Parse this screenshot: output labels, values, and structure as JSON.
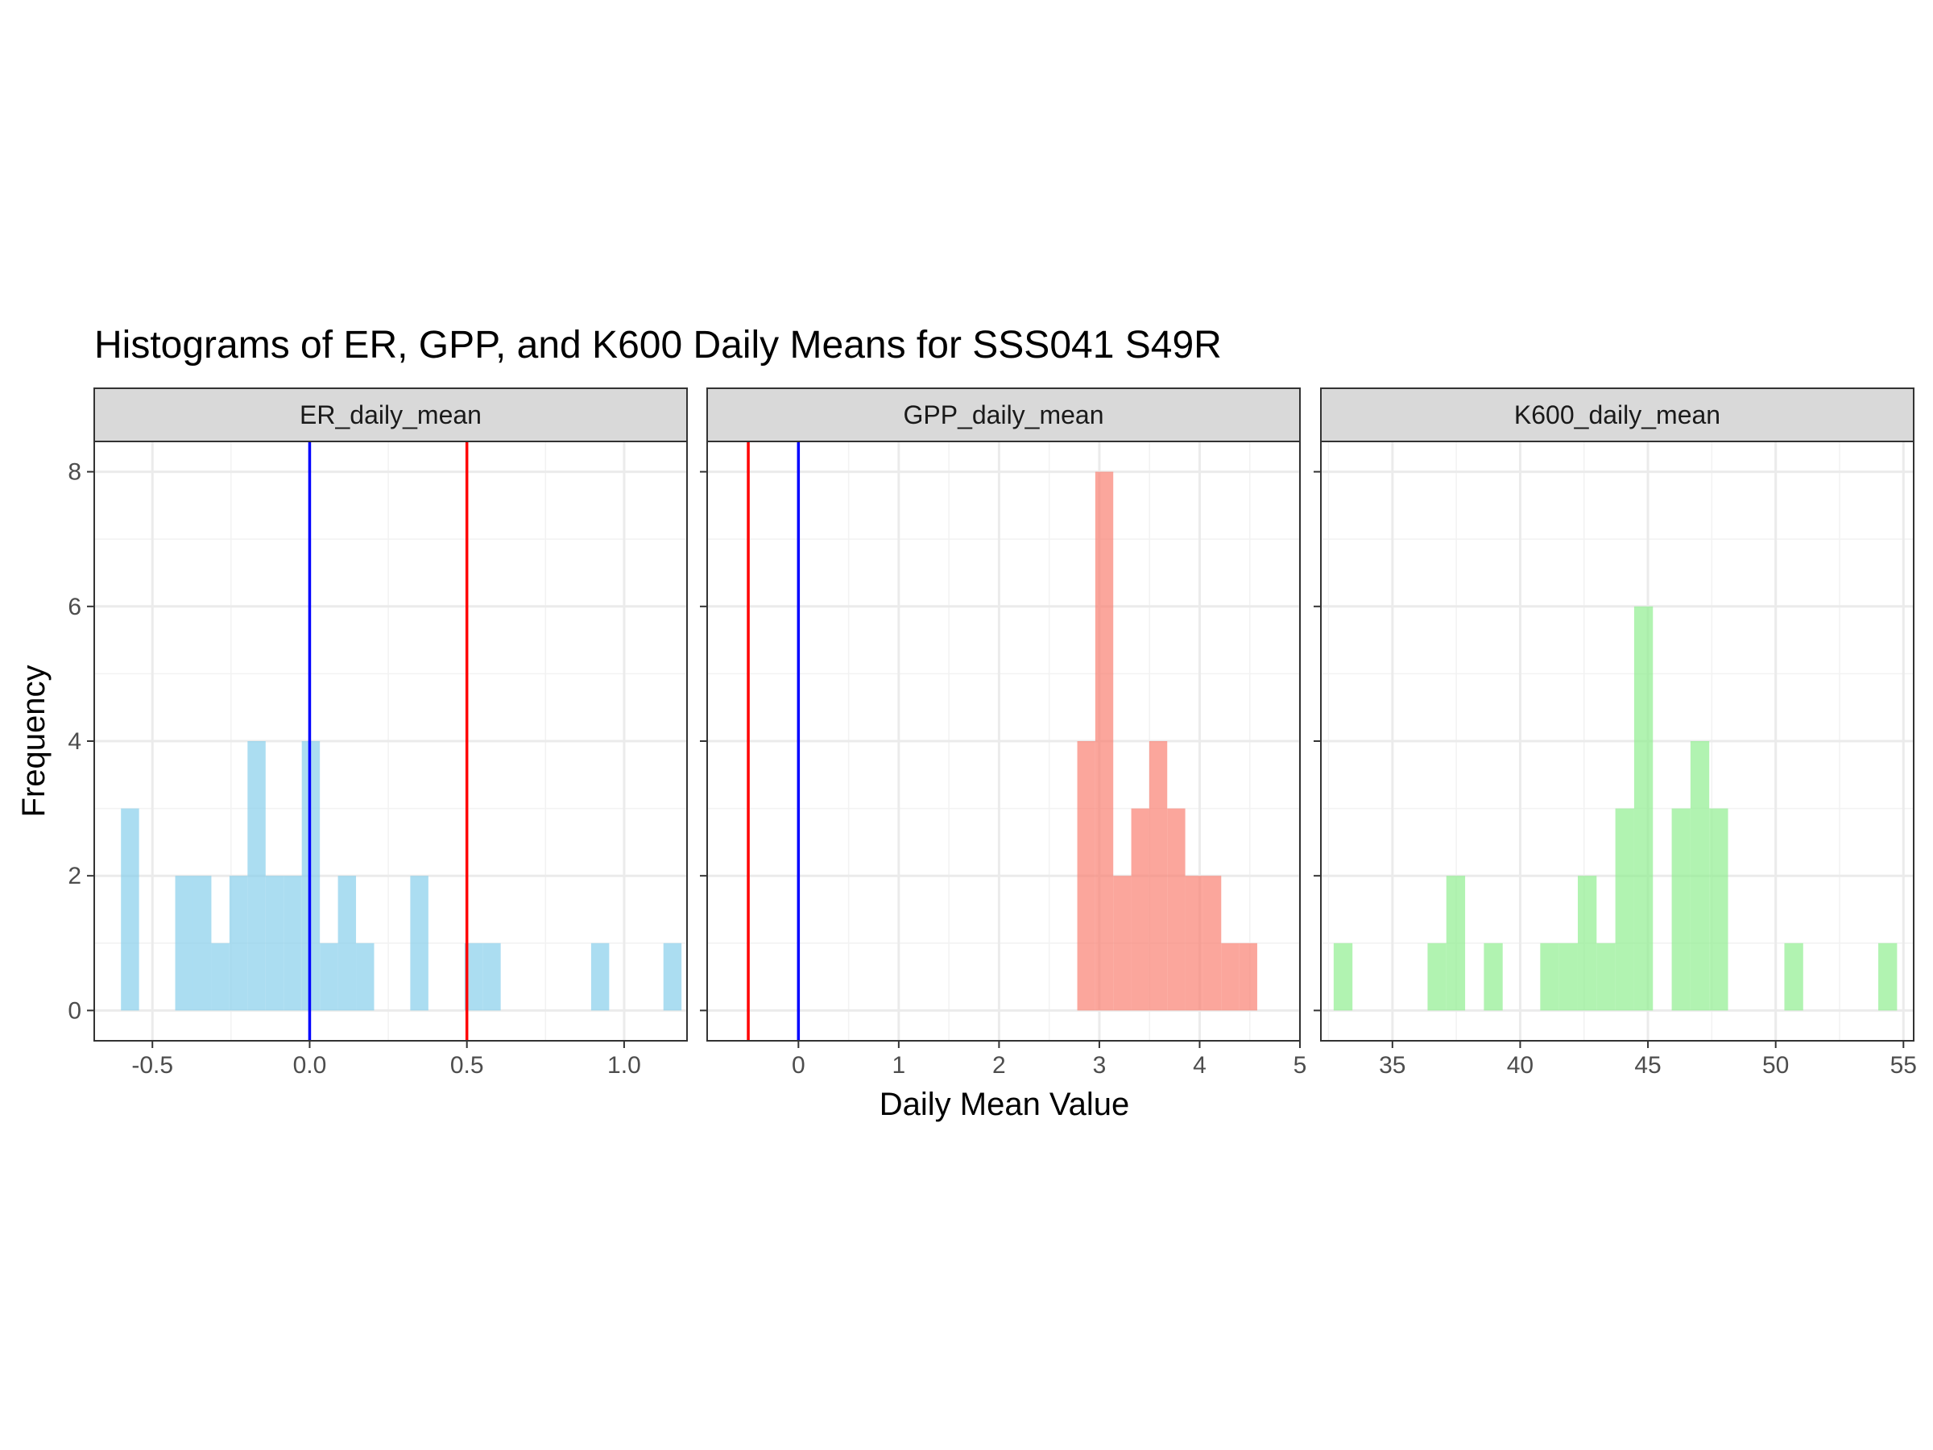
{
  "chart_data": {
    "type": "bar",
    "title": "Histograms of ER, GPP, and K600 Daily Means for SSS041 S49R",
    "xlabel": "Daily Mean Value",
    "ylabel": "Frequency",
    "ylim": [
      -0.45,
      8.45
    ],
    "y_ticks": [
      0,
      2,
      4,
      6,
      8
    ],
    "grid": true,
    "legend": "none",
    "panels": [
      {
        "name": "ER_daily_mean",
        "color": "#87CEEB",
        "xlim": [
          -0.685,
          1.2
        ],
        "x_ticks": [
          -0.5,
          0.0,
          0.5,
          1.0
        ],
        "x_tick_labels": [
          "-0.5",
          "0.0",
          "0.5",
          "1.0"
        ],
        "bin_start": -0.6,
        "bin_width": 0.0575,
        "counts": [
          3,
          0,
          0,
          2,
          2,
          1,
          2,
          4,
          2,
          2,
          4,
          1,
          2,
          1,
          0,
          0,
          2,
          0,
          0,
          1,
          1,
          0,
          0,
          0,
          0,
          0,
          1,
          0,
          0,
          0,
          1
        ],
        "vlines": [
          {
            "value": 0,
            "color": "#0000FF"
          },
          {
            "value": 0.5,
            "color": "#FF0000"
          }
        ]
      },
      {
        "name": "GPP_daily_mean",
        "color": "#FA8072",
        "xlim": [
          -0.91,
          5.0
        ],
        "x_ticks": [
          0,
          1,
          2,
          3,
          4,
          5
        ],
        "x_tick_labels": [
          "0",
          "1",
          "2",
          "3",
          "4",
          "5"
        ],
        "bin_start": 2.78,
        "bin_width": 0.1794,
        "counts": [
          4,
          8,
          2,
          3,
          4,
          3,
          2,
          2,
          1,
          1
        ],
        "vlines": [
          {
            "value": -0.5,
            "color": "#FF0000"
          },
          {
            "value": 0,
            "color": "#0000FF"
          }
        ]
      },
      {
        "name": "K600_daily_mean",
        "color": "#90EE90",
        "xlim": [
          32.2,
          55.4
        ],
        "x_ticks": [
          35,
          40,
          45,
          50,
          55
        ],
        "x_tick_labels": [
          "35",
          "40",
          "45",
          "50",
          "55"
        ],
        "bin_start": 32.7,
        "bin_width": 0.735,
        "counts": [
          1,
          0,
          0,
          0,
          0,
          1,
          2,
          0,
          1,
          0,
          0,
          1,
          1,
          2,
          1,
          3,
          6,
          0,
          3,
          4,
          3,
          0,
          0,
          0,
          1,
          0,
          0,
          0,
          0,
          1
        ],
        "vlines": []
      }
    ]
  }
}
